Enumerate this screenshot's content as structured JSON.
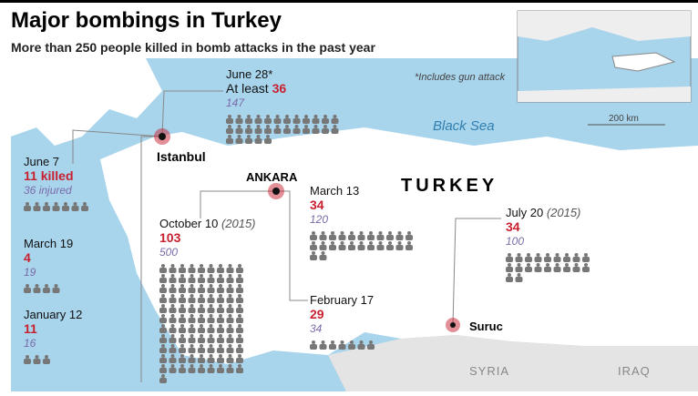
{
  "header": {
    "title": "Major bombings in Turkey",
    "subtitle": "More than 250 people killed in bomb attacks in the past year",
    "note": "*Includes gun attack"
  },
  "map": {
    "sea": "Black Sea",
    "country": "TURKEY",
    "neighbors": [
      "SYRIA",
      "IRAQ"
    ],
    "scale": "200 km",
    "cities": [
      "Istanbul",
      "ANKARA",
      "Suruc"
    ]
  },
  "events": [
    {
      "date": "June 7",
      "killed": 11,
      "killed_suffix": "killed",
      "injured": 36,
      "injured_suffix": "injured"
    },
    {
      "date": "March 19",
      "killed": 4,
      "injured": 19
    },
    {
      "date": "January 12",
      "killed": 11,
      "injured": 16
    },
    {
      "date": "June 28*",
      "killed_prefix": "At least",
      "killed": 36,
      "injured": 147
    },
    {
      "date": "October 10",
      "year": "(2015)",
      "killed": 103,
      "injured": 500
    },
    {
      "date": "March 13",
      "killed": 34,
      "injured": 120
    },
    {
      "date": "February 17",
      "killed": 29,
      "injured": 34
    },
    {
      "date": "July 20",
      "year": "(2015)",
      "killed": 34,
      "injured": 100
    }
  ]
}
